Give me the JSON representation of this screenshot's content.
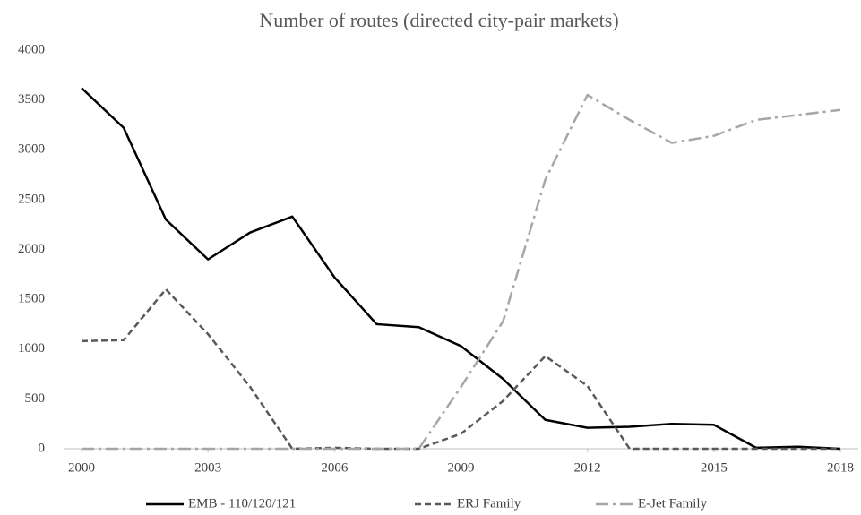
{
  "chart_data": {
    "type": "line",
    "title": "Number of routes (directed city-pair markets)",
    "x": [
      2000,
      2001,
      2002,
      2003,
      2004,
      2005,
      2006,
      2007,
      2008,
      2009,
      2010,
      2011,
      2012,
      2013,
      2014,
      2015,
      2016,
      2017,
      2018
    ],
    "xlim": [
      2000,
      2018
    ],
    "xticks": [
      2000,
      2003,
      2006,
      2009,
      2012,
      2015,
      2018
    ],
    "ylim": [
      0,
      4000
    ],
    "yticks": [
      0,
      500,
      1000,
      1500,
      2000,
      2500,
      3000,
      3500,
      4000
    ],
    "grid": false,
    "legend": "bottom",
    "series": [
      {
        "name": "EMB - 110/120/121",
        "color": "#000000",
        "dash": "solid",
        "values": [
          3620,
          3220,
          2300,
          1900,
          2170,
          2330,
          1720,
          1250,
          1220,
          1030,
          700,
          290,
          210,
          220,
          250,
          240,
          10,
          20,
          0
        ]
      },
      {
        "name": "ERJ Family",
        "color": "#595959",
        "dash": "dashed",
        "values": [
          1080,
          1090,
          1600,
          1150,
          620,
          0,
          10,
          0,
          0,
          150,
          480,
          930,
          630,
          0,
          0,
          0,
          0,
          0,
          0
        ]
      },
      {
        "name": "E-Jet Family",
        "color": "#a6a6a6",
        "dash": "dashdot",
        "values": [
          0,
          0,
          0,
          0,
          0,
          0,
          0,
          0,
          0,
          620,
          1280,
          2700,
          3550,
          3300,
          3070,
          3140,
          3300,
          3350,
          3400
        ]
      }
    ]
  }
}
